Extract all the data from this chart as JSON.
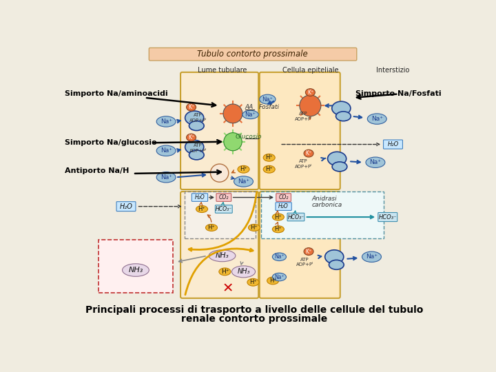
{
  "title": "Tubulo contorto prossimale",
  "caption_line1": "Principali processi di trasporto a livello delle cellule del tubulo",
  "caption_line2": "renale contorto prossimale",
  "bg_color": "#f0ece0",
  "title_box_color": "#f5cba7",
  "title_box_edge": "#c8a060",
  "lume_label": "Lume tubulare",
  "cell_label": "Cellula epiteliale",
  "interst_label": "Interstizio",
  "label_simporto_aa": "Simporto Na/aminoacidi",
  "label_simporto_fosfati": "Simporto Na/Fosfati",
  "label_simporto_gluc": "Simporto Na/glucosio",
  "label_antiporto": "Antiporto Na/H",
  "pump_color": "#e8703a",
  "na_color": "#a0c4d8",
  "na_edge": "#3060a0",
  "glucose_color": "#90d870",
  "glucose_edge": "#2a8a2a",
  "h_color": "#f0b830",
  "h_edge": "#c08000",
  "hco3_color": "#c8e4f0",
  "hco3_edge": "#4090b0",
  "nh3_color": "#e8d8e8",
  "nh3_edge": "#907090",
  "co2_color": "#f8c8c8",
  "co2_edge": "#c06060",
  "h2o_color": "#c8e8ff",
  "h2o_edge": "#4080c0",
  "lume_fill": "#faebd0",
  "lume_edge": "#c8a030",
  "cell_fill": "#fde8c0",
  "cell_edge": "#c8a030",
  "dark_blue": "#1a3a8c",
  "arrow_blue": "#2050a0",
  "arrow_orange": "#c06020",
  "arrow_teal": "#2090a0"
}
